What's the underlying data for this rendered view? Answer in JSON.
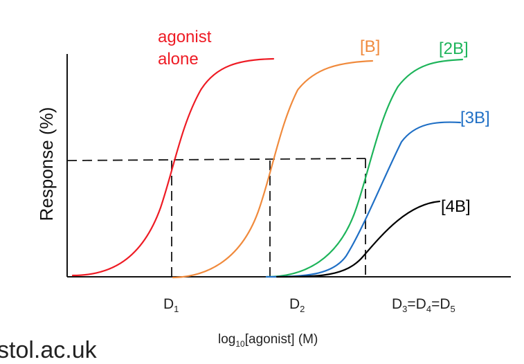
{
  "diagram": {
    "ylabel": "Response (%)",
    "xlabel": {
      "main": "log",
      "sub": "10",
      "rest": "[agonist] (M)"
    },
    "curves": [
      {
        "name": "agonist alone",
        "label_lines": [
          "agonist",
          "alone"
        ],
        "color": "#ee1b24"
      },
      {
        "name": "[B]",
        "label": "[B]",
        "color": "#f08a3c"
      },
      {
        "name": "[2B]",
        "label": "[2B]",
        "color": "#1db45a"
      },
      {
        "name": "[3B]",
        "label": "[3B]",
        "color": "#1f6fc5"
      },
      {
        "name": "[4B]",
        "label": "[4B]",
        "color": "#000000"
      }
    ],
    "dose_labels": [
      {
        "base": "D",
        "sub": "1"
      },
      {
        "base": "D",
        "sub": "2"
      },
      {
        "parts": [
          {
            "base": "D",
            "sub": "3"
          },
          {
            "base": "=D",
            "sub": "4"
          },
          {
            "base": "=D",
            "sub": "5"
          }
        ]
      }
    ],
    "footer_text": "stol.ac.uk"
  }
}
